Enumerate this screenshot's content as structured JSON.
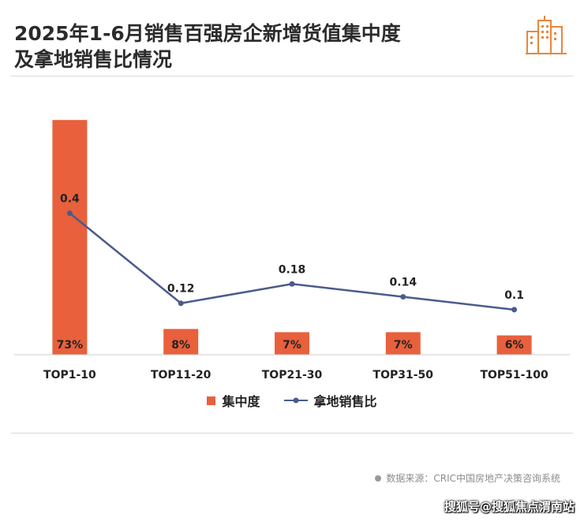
{
  "title_line1": "2025年1-6月销售百强房企新增货值集中度",
  "title_line2": "及拿地销售比情况",
  "legend": {
    "bar_label": "集中度",
    "line_label": "拿地销售比"
  },
  "source": "数据来源：CRIC中国房地产决策咨询系统",
  "watermark": "搜狐号@搜狐焦点渭南站",
  "colors": {
    "bar": "#E8603C",
    "line": "#4A5B8C",
    "axis": "#cccccc",
    "text": "#222222"
  },
  "logo_icon": "city-buildings-icon",
  "chart_data": {
    "type": "bar+line",
    "categories": [
      "TOP1-10",
      "TOP11-20",
      "TOP21-30",
      "TOP31-50",
      "TOP51-100"
    ],
    "series": [
      {
        "name": "集中度",
        "type": "bar",
        "values": [
          73,
          8,
          7,
          7,
          6
        ],
        "labels": [
          "73%",
          "8%",
          "7%",
          "7%",
          "6%"
        ]
      },
      {
        "name": "拿地销售比",
        "type": "line",
        "values": [
          0.4,
          0.12,
          0.18,
          0.14,
          0.1
        ],
        "labels": [
          "0.4",
          "0.12",
          "0.18",
          "0.14",
          "0.1"
        ]
      }
    ],
    "bar_ylim": [
      0,
      76
    ],
    "line_ylim": [
      -0.04,
      0.72
    ],
    "grid": false,
    "legend_position": "bottom"
  }
}
